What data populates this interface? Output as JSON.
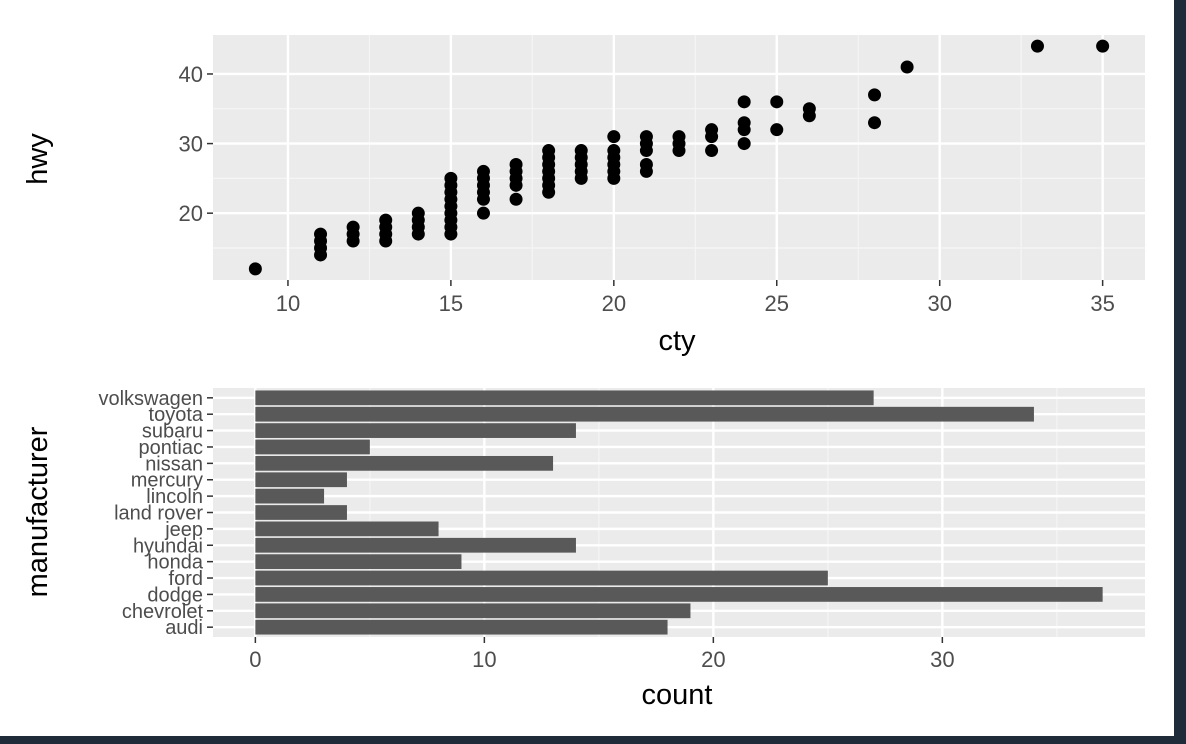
{
  "colors": {
    "panel_background": "#ebebeb",
    "grid_major": "#ffffff",
    "grid_minor": "#f5f5f5",
    "point": "#000000",
    "bar": "#595959",
    "tick_text": "#4d4d4d",
    "tick_mark": "#333333",
    "frame_border": "#1f2b38"
  },
  "chart_data": [
    {
      "type": "scatter",
      "xlabel": "cty",
      "ylabel": "hwy",
      "xlim": [
        7.7,
        36.3
      ],
      "ylim": [
        10.4,
        45.6
      ],
      "xticks": [
        10,
        15,
        20,
        25,
        30,
        35
      ],
      "yticks": [
        20,
        30,
        40
      ],
      "grid": true,
      "points": [
        {
          "x": 9,
          "y": 12
        },
        {
          "x": 11,
          "y": 14
        },
        {
          "x": 11,
          "y": 15
        },
        {
          "x": 11,
          "y": 16
        },
        {
          "x": 11,
          "y": 17
        },
        {
          "x": 12,
          "y": 16
        },
        {
          "x": 12,
          "y": 17
        },
        {
          "x": 12,
          "y": 18
        },
        {
          "x": 13,
          "y": 16
        },
        {
          "x": 13,
          "y": 17
        },
        {
          "x": 13,
          "y": 18
        },
        {
          "x": 13,
          "y": 19
        },
        {
          "x": 14,
          "y": 17
        },
        {
          "x": 14,
          "y": 18
        },
        {
          "x": 14,
          "y": 19
        },
        {
          "x": 14,
          "y": 20
        },
        {
          "x": 15,
          "y": 17
        },
        {
          "x": 15,
          "y": 18
        },
        {
          "x": 15,
          "y": 19
        },
        {
          "x": 15,
          "y": 20
        },
        {
          "x": 15,
          "y": 21
        },
        {
          "x": 15,
          "y": 22
        },
        {
          "x": 15,
          "y": 23
        },
        {
          "x": 15,
          "y": 24
        },
        {
          "x": 15,
          "y": 25
        },
        {
          "x": 16,
          "y": 20
        },
        {
          "x": 16,
          "y": 22
        },
        {
          "x": 16,
          "y": 23
        },
        {
          "x": 16,
          "y": 24
        },
        {
          "x": 16,
          "y": 25
        },
        {
          "x": 16,
          "y": 26
        },
        {
          "x": 17,
          "y": 22
        },
        {
          "x": 17,
          "y": 24
        },
        {
          "x": 17,
          "y": 25
        },
        {
          "x": 17,
          "y": 26
        },
        {
          "x": 17,
          "y": 27
        },
        {
          "x": 18,
          "y": 23
        },
        {
          "x": 18,
          "y": 24
        },
        {
          "x": 18,
          "y": 25
        },
        {
          "x": 18,
          "y": 26
        },
        {
          "x": 18,
          "y": 27
        },
        {
          "x": 18,
          "y": 28
        },
        {
          "x": 18,
          "y": 29
        },
        {
          "x": 19,
          "y": 25
        },
        {
          "x": 19,
          "y": 26
        },
        {
          "x": 19,
          "y": 27
        },
        {
          "x": 19,
          "y": 28
        },
        {
          "x": 19,
          "y": 29
        },
        {
          "x": 20,
          "y": 25
        },
        {
          "x": 20,
          "y": 26
        },
        {
          "x": 20,
          "y": 27
        },
        {
          "x": 20,
          "y": 28
        },
        {
          "x": 20,
          "y": 29
        },
        {
          "x": 20,
          "y": 31
        },
        {
          "x": 21,
          "y": 26
        },
        {
          "x": 21,
          "y": 27
        },
        {
          "x": 21,
          "y": 29
        },
        {
          "x": 21,
          "y": 30
        },
        {
          "x": 21,
          "y": 31
        },
        {
          "x": 22,
          "y": 29
        },
        {
          "x": 22,
          "y": 30
        },
        {
          "x": 22,
          "y": 31
        },
        {
          "x": 23,
          "y": 29
        },
        {
          "x": 23,
          "y": 31
        },
        {
          "x": 23,
          "y": 32
        },
        {
          "x": 24,
          "y": 30
        },
        {
          "x": 24,
          "y": 32
        },
        {
          "x": 24,
          "y": 33
        },
        {
          "x": 24,
          "y": 36
        },
        {
          "x": 25,
          "y": 32
        },
        {
          "x": 25,
          "y": 36
        },
        {
          "x": 26,
          "y": 34
        },
        {
          "x": 26,
          "y": 35
        },
        {
          "x": 28,
          "y": 33
        },
        {
          "x": 28,
          "y": 37
        },
        {
          "x": 29,
          "y": 41
        },
        {
          "x": 33,
          "y": 44
        },
        {
          "x": 35,
          "y": 44
        }
      ]
    },
    {
      "type": "bar",
      "orientation": "horizontal",
      "xlabel": "count",
      "ylabel": "manufacturer",
      "xlim": [
        -1.85,
        38.85
      ],
      "xticks": [
        0,
        10,
        20,
        30
      ],
      "grid": true,
      "categories": [
        "audi",
        "chevrolet",
        "dodge",
        "ford",
        "honda",
        "hyundai",
        "jeep",
        "land rover",
        "lincoln",
        "mercury",
        "nissan",
        "pontiac",
        "subaru",
        "toyota",
        "volkswagen"
      ],
      "values": [
        18,
        19,
        37,
        25,
        9,
        14,
        8,
        4,
        3,
        4,
        13,
        5,
        14,
        34,
        27
      ]
    }
  ]
}
